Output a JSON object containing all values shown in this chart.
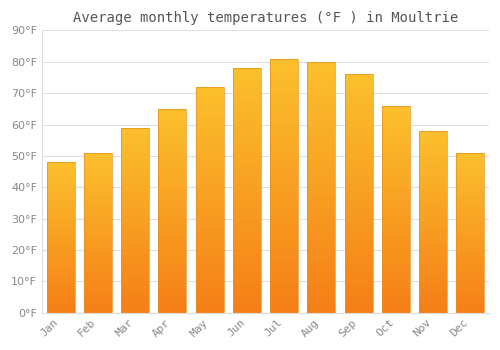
{
  "title": "Average monthly temperatures (°F ) in Moultrie",
  "months": [
    "Jan",
    "Feb",
    "Mar",
    "Apr",
    "May",
    "Jun",
    "Jul",
    "Aug",
    "Sep",
    "Oct",
    "Nov",
    "Dec"
  ],
  "values": [
    48,
    51,
    59,
    65,
    72,
    78,
    81,
    80,
    76,
    66,
    58,
    51
  ],
  "bar_color_top": "#FBC02D",
  "bar_color_bottom": "#F57F17",
  "bar_edge_color": "#E69020",
  "background_color": "#FFFFFF",
  "grid_color": "#DDDDDD",
  "text_color": "#888888",
  "title_color": "#555555",
  "ylim": [
    0,
    90
  ],
  "yticks": [
    0,
    10,
    20,
    30,
    40,
    50,
    60,
    70,
    80,
    90
  ],
  "ylabel_suffix": "°F",
  "title_fontsize": 10,
  "tick_fontsize": 8,
  "bar_width": 0.75
}
